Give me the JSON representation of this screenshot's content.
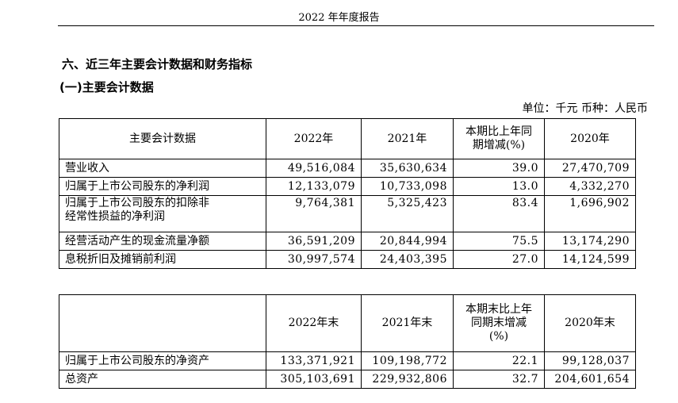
{
  "page": {
    "header_title": "2022 年年度报告",
    "section_title": "六、近三年主要会计数据和财务指标",
    "subsection_title": "(一)主要会计数据",
    "unit_line": "单位：千元  币种：人民币"
  },
  "table1": {
    "headers": [
      "主要会计数据",
      "2022年",
      "2021年",
      "本期比上年同期增减(%)",
      "2020年"
    ],
    "header_pct_lines": [
      "本期比上年同",
      "期增减(%)"
    ],
    "rows": [
      {
        "label": "营业收入",
        "v2022": "49,516,084",
        "v2021": "35,630,634",
        "pct": "39.0",
        "v2020": "27,470,709"
      },
      {
        "label": "归属于上市公司股东的净利润",
        "v2022": "12,133,079",
        "v2021": "10,733,098",
        "pct": "13.0",
        "v2020": "4,332,270"
      },
      {
        "label": "归属于上市公司股东的扣除非经常性损益的净利润",
        "label_lines": [
          "归属于上市公司股东的扣除非",
          "经常性损益的净利润"
        ],
        "v2022": "9,764,381",
        "v2021": "5,325,423",
        "pct": "83.4",
        "v2020": "1,696,902"
      },
      {
        "label": "经营活动产生的现金流量净额",
        "v2022": "36,591,209",
        "v2021": "20,844,994",
        "pct": "75.5",
        "v2020": "13,174,290"
      },
      {
        "label": "息税折旧及摊销前利润",
        "v2022": "30,997,574",
        "v2021": "24,403,395",
        "pct": "27.0",
        "v2020": "14,124,599"
      }
    ]
  },
  "table2": {
    "headers": [
      "",
      "2022年末",
      "2021年末",
      "本期末比上年同期末增减(%)",
      "2020年末"
    ],
    "header_pct_lines": [
      "本期末比上年",
      "同期末增减",
      "(%)"
    ],
    "rows": [
      {
        "label": "归属于上市公司股东的净资产",
        "v2022": "133,371,921",
        "v2021": "109,198,772",
        "pct": "22.1",
        "v2020": "99,128,037"
      },
      {
        "label": "总资产",
        "v2022": "305,103,691",
        "v2021": "229,932,806",
        "pct": "32.7",
        "v2020": "204,601,654"
      }
    ]
  }
}
